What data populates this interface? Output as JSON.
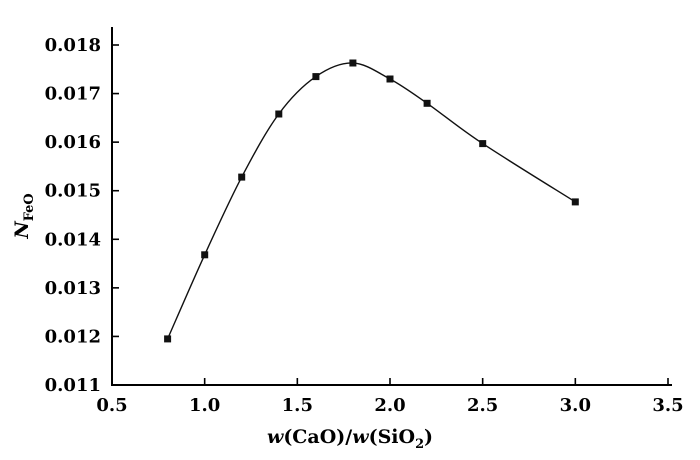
{
  "chart_data": {
    "type": "line",
    "title": "",
    "x": [
      0.8,
      1.0,
      1.2,
      1.4,
      1.6,
      1.8,
      2.0,
      2.2,
      2.5,
      3.0
    ],
    "series": [
      {
        "name": "NFeO",
        "values": [
          0.01195,
          0.01368,
          0.01528,
          0.01658,
          0.01735,
          0.01763,
          0.0173,
          0.0168,
          0.01597,
          0.01477
        ]
      }
    ],
    "xlabel": "w(CaO)/w(SiO2)",
    "ylabel": "N_FeO",
    "xlim": [
      0.5,
      3.5
    ],
    "ylim": [
      0.011,
      0.018
    ],
    "x_ticks": [
      0.5,
      1.0,
      1.5,
      2.0,
      2.5,
      3.0,
      3.5
    ],
    "x_tick_labels": [
      "0.5",
      "1.0",
      "1.5",
      "2.0",
      "2.5",
      "3.0",
      "3.5"
    ],
    "y_ticks": [
      0.011,
      0.012,
      0.013,
      0.014,
      0.015,
      0.016,
      0.017,
      0.018
    ],
    "y_tick_labels": [
      "0.011",
      "0.012",
      "0.013",
      "0.014",
      "0.015",
      "0.016",
      "0.017",
      "0.018"
    ],
    "grid": false,
    "legend": "none",
    "marker": "filled-square",
    "line_color": "#111111",
    "marker_color": "#111111",
    "background_color": "#ffffff",
    "xlabel_parts": {
      "w1": "w",
      "mid": "(CaO)/",
      "w2": "w",
      "tail": "(SiO",
      "sub": "2",
      "close": ")"
    },
    "ylabel_parts": {
      "main": "N",
      "sub": "FeO"
    }
  }
}
